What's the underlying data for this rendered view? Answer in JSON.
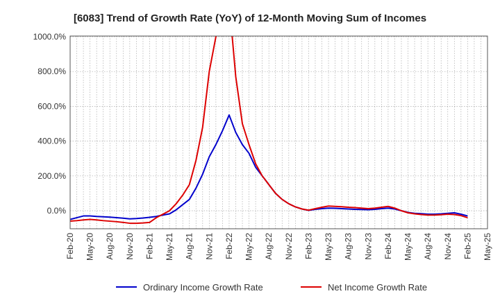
{
  "chart_data": {
    "type": "line",
    "title": "[6083]  Trend of Growth Rate (YoY) of 12-Month Moving Sum of Incomes",
    "xlabel": "",
    "ylabel": "",
    "ylim": [
      -100,
      1000
    ],
    "y_ticks": [
      "1000.0%",
      "800.0%",
      "600.0%",
      "400.0%",
      "200.0%",
      "0.0%"
    ],
    "y_tick_values": [
      1000,
      800,
      600,
      400,
      200,
      0
    ],
    "x_ticks": [
      "Feb-20",
      "May-20",
      "Aug-20",
      "Nov-20",
      "Feb-21",
      "May-21",
      "Aug-21",
      "Nov-21",
      "Feb-22",
      "May-22",
      "Aug-22",
      "Nov-22",
      "Feb-23",
      "May-23",
      "Aug-23",
      "Nov-23",
      "Feb-24",
      "May-24",
      "Aug-24",
      "Nov-24",
      "Feb-25",
      "May-25"
    ],
    "grid": true,
    "legend_position": "bottom",
    "x": [
      "2020-02",
      "2020-03",
      "2020-04",
      "2020-05",
      "2020-06",
      "2020-07",
      "2020-08",
      "2020-09",
      "2020-10",
      "2020-11",
      "2020-12",
      "2021-01",
      "2021-02",
      "2021-03",
      "2021-04",
      "2021-05",
      "2021-06",
      "2021-07",
      "2021-08",
      "2021-09",
      "2021-10",
      "2021-11",
      "2021-12",
      "2022-01",
      "2022-02",
      "2022-03",
      "2022-04",
      "2022-05",
      "2022-06",
      "2022-07",
      "2022-08",
      "2022-09",
      "2022-10",
      "2022-11",
      "2022-12",
      "2023-01",
      "2023-02",
      "2023-03",
      "2023-04",
      "2023-05",
      "2023-06",
      "2023-07",
      "2023-08",
      "2023-09",
      "2023-10",
      "2023-11",
      "2023-12",
      "2024-01",
      "2024-02",
      "2024-03",
      "2024-04",
      "2024-05",
      "2024-06",
      "2024-07",
      "2024-08",
      "2024-09",
      "2024-10",
      "2024-11",
      "2024-12",
      "2025-01",
      "2025-02"
    ],
    "series": [
      {
        "name": "Ordinary Income Growth Rate",
        "color": "#0000cc",
        "values": [
          -50,
          -40,
          -30,
          -30,
          -33,
          -35,
          -37,
          -40,
          -43,
          -47,
          -45,
          -42,
          -38,
          -33,
          -25,
          -18,
          5,
          35,
          65,
          130,
          210,
          310,
          380,
          460,
          550,
          450,
          380,
          330,
          250,
          200,
          150,
          100,
          65,
          40,
          22,
          10,
          2,
          8,
          12,
          15,
          14,
          12,
          10,
          8,
          7,
          6,
          8,
          12,
          15,
          10,
          0,
          -10,
          -15,
          -17,
          -20,
          -20,
          -18,
          -15,
          -12,
          -20,
          -30
        ]
      },
      {
        "name": "Net Income Growth Rate",
        "color": "#dd0000",
        "values": [
          -60,
          -57,
          -53,
          -50,
          -53,
          -57,
          -60,
          -63,
          -67,
          -72,
          -72,
          -70,
          -67,
          -40,
          -20,
          0,
          40,
          90,
          150,
          290,
          480,
          800,
          1000,
          1200,
          1200,
          770,
          500,
          380,
          270,
          200,
          150,
          100,
          65,
          40,
          22,
          10,
          3,
          12,
          20,
          27,
          25,
          23,
          20,
          18,
          15,
          12,
          15,
          20,
          25,
          15,
          0,
          -12,
          -18,
          -22,
          -25,
          -25,
          -23,
          -20,
          -22,
          -28,
          -40
        ]
      }
    ]
  }
}
